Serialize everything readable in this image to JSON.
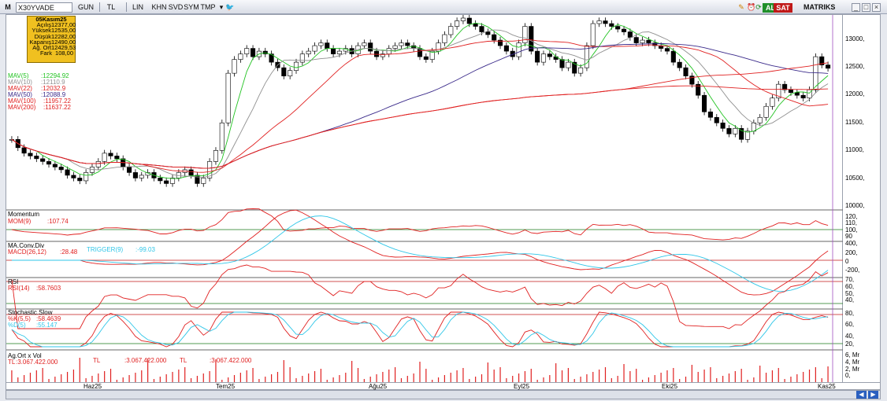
{
  "toolbar": {
    "m_label": "M",
    "symbol": "X30YVADE",
    "buttons": [
      "GUN",
      "TL",
      "LIN",
      "KHN",
      "SVD",
      "SYM",
      "TMP"
    ],
    "al": "AL",
    "sat": "SAT",
    "brand": "MATRIKS"
  },
  "info": {
    "date": "05Kasım25",
    "rows": [
      {
        "k": "Açılış",
        "v": "12377,00"
      },
      {
        "k": "Yüksek",
        "v": "12535,00"
      },
      {
        "k": "Düşük",
        "v": "12282,00"
      },
      {
        "k": "Kapanış",
        "v": "12490,00"
      },
      {
        "k": "Ağ. Ort",
        "v": "12429,53"
      },
      {
        "k": "Fark",
        "v": "108,00"
      }
    ]
  },
  "mav": [
    {
      "label": "MAV(5)",
      "value": ":12294.92",
      "color": "#22c322"
    },
    {
      "label": "MAV(10)",
      "value": ":12110.9",
      "color": "#909090"
    },
    {
      "label": "MAV(22)",
      "value": ":12032.9",
      "color": "#e02020"
    },
    {
      "label": "MAV(50)",
      "value": ":12088.9",
      "color": "#3a2a8a"
    },
    {
      "label": "MAV(100)",
      "value": ":11957.22",
      "color": "#e02020"
    },
    {
      "label": "MAV(200)",
      "value": ":11637.22",
      "color": "#e02020"
    }
  ],
  "price_axis": [
    "13000,",
    "12500,",
    "12000,",
    "11500,",
    "11000,",
    "10500,",
    "10000,"
  ],
  "momentum": {
    "title": "Momentum",
    "label": "MOM(9)",
    "value": ":107.74",
    "axis": [
      "120,",
      "110,",
      "100,",
      "90"
    ]
  },
  "macd": {
    "title": "MA.Conv.Div",
    "label": "MACD(26,12)",
    "value": ":28.48",
    "trigger_label": "TRIGGER(9)",
    "trigger_value": ":-99.03",
    "axis": [
      "400,",
      "200,",
      "0",
      "-200,"
    ]
  },
  "rsi": {
    "title": "RSI",
    "label": "RSI(14)",
    "value": ":58.7603",
    "axis": [
      "70,",
      "60,",
      "50,",
      "40,"
    ]
  },
  "stoch": {
    "title": "Stochastic.Slow",
    "k_label": "%K(5,5)",
    "k_value": ":58.4639",
    "d_label": "%D(5)",
    "d_value": ":55.147",
    "axis": [
      "80,",
      "60,",
      "40,",
      "20,"
    ]
  },
  "vol": {
    "title": "Ag.Ort x Vol",
    "label1": "TL",
    "value1": ":3.067.422.000",
    "label2": "TL",
    "value2": ":3.067.422.000",
    "label3": "TL",
    "value3": ":3.067.422.000",
    "axis": [
      "6, Mr",
      "4, Mr",
      "2, Mr",
      "0,"
    ]
  },
  "time_axis": [
    "Haz25",
    "Tem25",
    "Ağu25",
    "Eyl25",
    "Eki25",
    "Kas25"
  ],
  "chart_data": {
    "type": "candlestick",
    "x_start": "2025-05-22",
    "series_close": [
      11200,
      11050,
      10950,
      10900,
      10850,
      10800,
      10750,
      10700,
      10650,
      10550,
      10500,
      10450,
      10600,
      10700,
      10800,
      10950,
      10900,
      10850,
      10700,
      10600,
      10500,
      10550,
      10600,
      10500,
      10450,
      10400,
      10500,
      10600,
      10650,
      10550,
      10400,
      10500,
      10800,
      11000,
      11500,
      12400,
      12650,
      12750,
      12850,
      12700,
      12800,
      12750,
      12600,
      12500,
      12350,
      12450,
      12600,
      12750,
      12800,
      12900,
      12950,
      12850,
      12750,
      12800,
      12850,
      12750,
      12900,
      12950,
      12800,
      12700,
      12750,
      12850,
      12900,
      12950,
      12900,
      12850,
      12700,
      12650,
      12800,
      12950,
      13100,
      13250,
      13350,
      13400,
      13300,
      13250,
      13150,
      13100,
      13000,
      12900,
      12800,
      12700,
      12950,
      13250,
      12800,
      12600,
      12750,
      12700,
      12650,
      12500,
      12600,
      12400,
      12500,
      12900,
      13300,
      13350,
      13300,
      13250,
      13200,
      13150,
      13050,
      12950,
      13000,
      12950,
      12900,
      12850,
      12800,
      12600,
      12500,
      12350,
      12200,
      12000,
      11700,
      11600,
      11500,
      11400,
      11300,
      11400,
      11200,
      11350,
      11500,
      11600,
      11800,
      11950,
      12200,
      12100,
      12050,
      12000,
      11950,
      12100,
      12700,
      12550,
      12490
    ]
  }
}
